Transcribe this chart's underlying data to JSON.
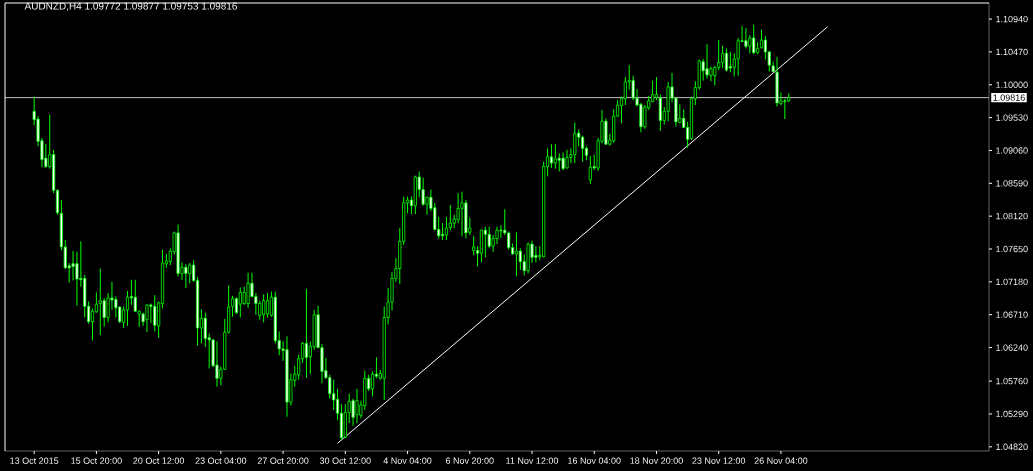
{
  "chart_data": {
    "type": "candlestick",
    "title": "AUDNZD,H4 1.09772 1.09877 1.09753 1.09816",
    "categories": [
      "13 Oct 2015",
      null,
      null,
      null,
      null,
      null,
      null,
      null,
      null,
      null,
      null,
      null,
      null,
      null,
      null,
      null,
      "15 Oct 20:00",
      null,
      null,
      null,
      null,
      null,
      null,
      null,
      null,
      null,
      null,
      null,
      null,
      null,
      null,
      null,
      "20 Oct 12:00",
      null,
      null,
      null,
      null,
      null,
      null,
      null,
      null,
      null,
      null,
      null,
      null,
      null,
      null,
      null,
      "23 Oct 04:00",
      null,
      null,
      null,
      null,
      null,
      null,
      null,
      null,
      null,
      null,
      null,
      null,
      null,
      null,
      null,
      "27 Oct 20:00",
      null,
      null,
      null,
      null,
      null,
      null,
      null,
      null,
      null,
      null,
      null,
      null,
      null,
      null,
      null,
      "30 Oct 12:00",
      null,
      null,
      null,
      null,
      null,
      null,
      null,
      null,
      null,
      null,
      null,
      null,
      null,
      null,
      null,
      "4 Nov 04:00",
      null,
      null,
      null,
      null,
      null,
      null,
      null,
      null,
      null,
      null,
      null,
      null,
      null,
      null,
      null,
      "6 Nov 20:00",
      null,
      null,
      null,
      null,
      null,
      null,
      null,
      null,
      null,
      null,
      null,
      null,
      null,
      null,
      null,
      "11 Nov 12:00",
      null,
      null,
      null,
      null,
      null,
      null,
      null,
      null,
      null,
      null,
      null,
      null,
      null,
      null,
      null,
      "16 Nov 04:00",
      null,
      null,
      null,
      null,
      null,
      null,
      null,
      null,
      null,
      null,
      null,
      null,
      null,
      null,
      null,
      "18 Nov 20:00",
      null,
      null,
      null,
      null,
      null,
      null,
      null,
      null,
      null,
      null,
      null,
      null,
      null,
      null,
      null,
      "23 Nov 12:00",
      null,
      null,
      null,
      null,
      null,
      null,
      null,
      null,
      null,
      null,
      null,
      null,
      null,
      null,
      null,
      "26 Nov 04:00",
      null,
      null,
      null,
      null,
      null,
      null,
      null,
      null,
      null,
      null,
      null,
      null,
      null,
      null,
      null,
      null,
      null,
      null,
      null,
      null,
      null,
      null,
      null,
      null,
      null,
      null,
      null,
      null,
      null,
      null,
      null,
      null,
      null,
      null,
      null,
      null,
      null,
      null,
      null,
      null,
      null,
      null,
      null,
      null,
      null,
      null,
      null,
      null,
      null,
      null,
      null,
      null,
      null
    ],
    "series": [
      {
        "type": "candlestick",
        "color": "#00ff00",
        "ohlc": [
          [
            1.0962,
            1.0983,
            1.0942,
            1.095
          ],
          [
            1.0951,
            1.0955,
            1.0912,
            1.0919
          ],
          [
            1.092,
            1.0924,
            1.0882,
            1.0893
          ],
          [
            1.0895,
            1.0915,
            1.0881,
            1.0883
          ],
          [
            1.0883,
            1.0957,
            1.088,
            1.09
          ],
          [
            1.09,
            1.0907,
            1.0845,
            1.0849
          ],
          [
            1.0849,
            1.085,
            1.0814,
            1.0817
          ],
          [
            1.0816,
            1.0835,
            1.0763,
            1.0768
          ],
          [
            1.0768,
            1.0778,
            1.0737,
            1.0738
          ],
          [
            1.0741,
            1.0745,
            1.0717,
            1.0738
          ],
          [
            1.0744,
            1.0762,
            1.072,
            1.074
          ],
          [
            1.0744,
            1.0761,
            1.0684,
            1.0722
          ],
          [
            1.0723,
            1.0776,
            1.0711,
            1.0721
          ],
          [
            1.0723,
            1.0728,
            1.0667,
            1.0683
          ],
          [
            1.0683,
            1.069,
            1.0658,
            1.0661
          ],
          [
            1.0661,
            1.068,
            1.0634,
            1.0676
          ],
          [
            1.0675,
            1.0703,
            1.0674,
            1.0686
          ],
          [
            1.0687,
            1.0737,
            1.0642,
            1.0691
          ],
          [
            1.0691,
            1.0695,
            1.0654,
            1.0667
          ],
          [
            1.0667,
            1.0702,
            1.066,
            1.0695
          ],
          [
            1.0695,
            1.0718,
            1.0678,
            1.0692
          ],
          [
            1.0693,
            1.0697,
            1.0667,
            1.0681
          ],
          [
            1.0682,
            1.0683,
            1.0659,
            1.0661
          ],
          [
            1.066,
            1.0683,
            1.0652,
            1.0678
          ],
          [
            1.0678,
            1.0705,
            1.0655,
            1.0696
          ],
          [
            1.0697,
            1.0721,
            1.0685,
            1.0695
          ],
          [
            1.0696,
            1.0721,
            1.0675,
            1.0676
          ],
          [
            1.0672,
            1.0677,
            1.0654,
            1.0676
          ],
          [
            1.0672,
            1.0674,
            1.0655,
            1.0661
          ],
          [
            1.0664,
            1.0686,
            1.0646,
            1.0685
          ],
          [
            1.0685,
            1.0687,
            1.0659,
            1.0683
          ],
          [
            1.0683,
            1.0699,
            1.0647,
            1.0656
          ],
          [
            1.0655,
            1.069,
            1.0638,
            1.0688
          ],
          [
            1.0687,
            1.0764,
            1.068,
            1.0745
          ],
          [
            1.0744,
            1.0758,
            1.0738,
            1.0748
          ],
          [
            1.0747,
            1.0766,
            1.0742,
            1.0762
          ],
          [
            1.0761,
            1.079,
            1.0757,
            1.0788
          ],
          [
            1.0788,
            1.08,
            1.0726,
            1.073
          ],
          [
            1.073,
            1.0746,
            1.0721,
            1.0739
          ],
          [
            1.0739,
            1.0743,
            1.0709,
            1.073
          ],
          [
            1.073,
            1.0745,
            1.0716,
            1.0742
          ],
          [
            1.0742,
            1.0749,
            1.0718,
            1.072
          ],
          [
            1.072,
            1.0725,
            1.0627,
            1.0652
          ],
          [
            1.0652,
            1.0679,
            1.063,
            1.0666
          ],
          [
            1.0666,
            1.0674,
            1.0625,
            1.0637
          ],
          [
            1.0638,
            1.0644,
            1.0594,
            1.0635
          ],
          [
            1.0635,
            1.0636,
            1.0596,
            1.0598
          ],
          [
            1.0599,
            1.0633,
            1.0568,
            1.058
          ],
          [
            1.058,
            1.0597,
            1.057,
            1.0593
          ],
          [
            1.0593,
            1.0665,
            1.0592,
            1.0646
          ],
          [
            1.0646,
            1.0713,
            1.0644,
            1.0682
          ],
          [
            1.0683,
            1.0698,
            1.0668,
            1.0694
          ],
          [
            1.0694,
            1.0696,
            1.0672,
            1.0674
          ],
          [
            1.0686,
            1.071,
            1.0667,
            1.0703
          ],
          [
            1.0687,
            1.0711,
            1.0685,
            1.0703
          ],
          [
            1.0687,
            1.0731,
            1.0681,
            1.0716
          ],
          [
            1.0716,
            1.0731,
            1.0696,
            1.0697
          ],
          [
            1.0697,
            1.0702,
            1.0671,
            1.0687
          ],
          [
            1.067,
            1.0691,
            1.0664,
            1.0687
          ],
          [
            1.0671,
            1.07,
            1.066,
            1.0691
          ],
          [
            1.0672,
            1.0702,
            1.0667,
            1.0691
          ],
          [
            1.067,
            1.0704,
            1.0668,
            1.0696
          ],
          [
            1.0696,
            1.0704,
            1.063,
            1.0634
          ],
          [
            1.0634,
            1.0647,
            1.0613,
            1.0622
          ],
          [
            1.0622,
            1.0633,
            1.0605,
            1.062
          ],
          [
            1.0621,
            1.064,
            1.0525,
            1.0546
          ],
          [
            1.0546,
            1.0587,
            1.0541,
            1.0578
          ],
          [
            1.0577,
            1.0598,
            1.0568,
            1.0586
          ],
          [
            1.0585,
            1.0614,
            1.0578,
            1.0608
          ],
          [
            1.0608,
            1.0632,
            1.0602,
            1.063
          ],
          [
            1.063,
            1.0708,
            1.0581,
            1.061
          ],
          [
            1.0611,
            1.0633,
            1.0586,
            1.0626
          ],
          [
            1.0625,
            1.0678,
            1.0621,
            1.0671
          ],
          [
            1.0671,
            1.0684,
            1.0623,
            1.0624
          ],
          [
            1.0624,
            1.0629,
            1.0573,
            1.059
          ],
          [
            1.0591,
            1.0609,
            1.0579,
            1.0581
          ],
          [
            1.0581,
            1.0585,
            1.0551,
            1.0558
          ],
          [
            1.0558,
            1.0578,
            1.0535,
            1.0549
          ],
          [
            1.055,
            1.0565,
            1.052,
            1.053
          ],
          [
            1.053,
            1.0543,
            1.0492,
            1.0495
          ],
          [
            1.0496,
            1.0543,
            1.0494,
            1.0531
          ],
          [
            1.0531,
            1.0558,
            1.0516,
            1.0547
          ],
          [
            1.0548,
            1.0551,
            1.0512,
            1.0524
          ],
          [
            1.0528,
            1.0565,
            1.0516,
            1.0548
          ],
          [
            1.0527,
            1.0548,
            1.0523,
            1.0542
          ],
          [
            1.0541,
            1.0591,
            1.0535,
            1.058
          ],
          [
            1.058,
            1.0585,
            1.0562,
            1.0565
          ],
          [
            1.0565,
            1.059,
            1.0554,
            1.0586
          ],
          [
            1.0586,
            1.061,
            1.058,
            1.0583
          ],
          [
            1.058,
            1.0592,
            1.0578,
            1.0587
          ],
          [
            1.058,
            1.0683,
            1.0549,
            1.0667
          ],
          [
            1.0667,
            1.0709,
            1.0657,
            1.0689
          ],
          [
            1.0689,
            1.0732,
            1.0677,
            1.0723
          ],
          [
            1.0723,
            1.0752,
            1.0718,
            1.0737
          ],
          [
            1.0737,
            1.0795,
            1.0715,
            1.0776
          ],
          [
            1.0776,
            1.084,
            1.0771,
            1.0831
          ],
          [
            1.0831,
            1.084,
            1.0816,
            1.0835
          ],
          [
            1.0835,
            1.084,
            1.0815,
            1.0827
          ],
          [
            1.0827,
            1.087,
            1.0815,
            1.0868
          ],
          [
            1.0868,
            1.0876,
            1.0839,
            1.085
          ],
          [
            1.085,
            1.0867,
            1.0827,
            1.0829
          ],
          [
            1.0829,
            1.084,
            1.0814,
            1.0839
          ],
          [
            1.0839,
            1.085,
            1.0819,
            1.0823
          ],
          [
            1.0824,
            1.0831,
            1.0792,
            1.0793
          ],
          [
            1.0793,
            1.0811,
            1.078,
            1.0784
          ],
          [
            1.0786,
            1.0802,
            1.0778,
            1.0784
          ],
          [
            1.0785,
            1.0811,
            1.0778,
            1.0795
          ],
          [
            1.0796,
            1.0828,
            1.0792,
            1.0802
          ],
          [
            1.0802,
            1.0814,
            1.0795,
            1.0808
          ],
          [
            1.0807,
            1.0845,
            1.0802,
            1.0823
          ],
          [
            1.0823,
            1.0847,
            1.0783,
            1.0831
          ],
          [
            1.0831,
            1.0835,
            1.078,
            1.0788
          ],
          [
            1.0789,
            1.081,
            1.0785,
            1.0795
          ],
          [
            1.0763,
            1.0784,
            1.0756,
            1.0768
          ],
          [
            1.0763,
            1.0769,
            1.074,
            1.0759
          ],
          [
            1.0759,
            1.0793,
            1.0746,
            1.0792
          ],
          [
            1.0792,
            1.0797,
            1.0753,
            1.0786
          ],
          [
            1.0786,
            1.0797,
            1.0766,
            1.0769
          ],
          [
            1.0769,
            1.0785,
            1.0761,
            1.078
          ],
          [
            1.078,
            1.0797,
            1.0772,
            1.0792
          ],
          [
            1.0792,
            1.0799,
            1.0781,
            1.0791
          ],
          [
            1.0792,
            1.0822,
            1.0785,
            1.0788
          ],
          [
            1.0788,
            1.079,
            1.0764,
            1.0767
          ],
          [
            1.0767,
            1.0773,
            1.0757,
            1.0758
          ],
          [
            1.0758,
            1.0789,
            1.0726,
            1.0762
          ],
          [
            1.0762,
            1.0766,
            1.0735,
            1.0747
          ],
          [
            1.0747,
            1.0757,
            1.0727,
            1.0734
          ],
          [
            1.0734,
            1.0774,
            1.073,
            1.0772
          ],
          [
            1.0772,
            1.0777,
            1.0745,
            1.0753
          ],
          [
            1.0756,
            1.0769,
            1.0746,
            1.0753
          ],
          [
            1.0754,
            1.0769,
            1.0749,
            1.0756
          ],
          [
            1.0754,
            1.089,
            1.0753,
            1.0883
          ],
          [
            1.0883,
            1.0909,
            1.0869,
            1.0897
          ],
          [
            1.0897,
            1.0915,
            1.0881,
            1.0888
          ],
          [
            1.0888,
            1.0915,
            1.088,
            1.0894
          ],
          [
            1.0895,
            1.0902,
            1.0876,
            1.0892
          ],
          [
            1.0895,
            1.0903,
            1.0878,
            1.088
          ],
          [
            1.0881,
            1.0907,
            1.088,
            1.0896
          ],
          [
            1.0896,
            1.0909,
            1.0888,
            1.09
          ],
          [
            1.09,
            1.0946,
            1.0888,
            1.093
          ],
          [
            1.0931,
            1.0936,
            1.0912,
            1.0925
          ],
          [
            1.0925,
            1.0927,
            1.089,
            1.0909
          ],
          [
            1.0909,
            1.0912,
            1.0892,
            1.0899
          ],
          [
            1.0864,
            1.0898,
            1.0858,
            1.0882
          ],
          [
            1.0883,
            1.09,
            1.0878,
            1.0881
          ],
          [
            1.0881,
            1.0924,
            1.0877,
            1.092
          ],
          [
            1.0919,
            1.0964,
            1.0916,
            1.0948
          ],
          [
            1.0948,
            1.0952,
            1.0914,
            1.0915
          ],
          [
            1.0915,
            1.093,
            1.0913,
            1.0921
          ],
          [
            1.092,
            1.0965,
            1.0917,
            1.0955
          ],
          [
            1.0955,
            1.0978,
            1.0954,
            1.0971
          ],
          [
            1.097,
            1.0983,
            1.0945,
            1.0981
          ],
          [
            1.098,
            1.1011,
            1.0971,
            1.1004
          ],
          [
            1.1004,
            1.1028,
            1.0993,
            1.1006
          ],
          [
            1.1006,
            1.1013,
            1.0978,
            1.0981
          ],
          [
            1.0981,
            1.0994,
            1.0969,
            1.0971
          ],
          [
            1.0972,
            1.0974,
            1.0932,
            1.094
          ],
          [
            1.094,
            1.0971,
            1.0937,
            1.0968
          ],
          [
            1.0967,
            1.0984,
            1.0964,
            1.0977
          ],
          [
            1.0976,
            1.1006,
            1.0975,
            1.0986
          ],
          [
            1.0982,
            1.1011,
            1.0978,
            1.0986
          ],
          [
            1.0981,
            1.0986,
            1.0934,
            1.0949
          ],
          [
            1.0949,
            1.0968,
            1.0943,
            1.0962
          ],
          [
            1.0962,
            1.1004,
            1.0948,
            1.0997
          ],
          [
            1.0997,
            1.1017,
            1.0975,
            1.0981
          ],
          [
            1.0981,
            1.0982,
            1.094,
            1.0947
          ],
          [
            1.0946,
            1.0972,
            1.0945,
            1.0952
          ],
          [
            1.0952,
            1.0965,
            1.0938,
            1.0939
          ],
          [
            1.0939,
            1.0947,
            1.091,
            1.0922
          ],
          [
            1.0923,
            1.0983,
            1.0921,
            1.098
          ],
          [
            1.098,
            1.1005,
            1.0971,
            1.0996
          ],
          [
            1.0996,
            1.1036,
            1.0993,
            1.1034
          ],
          [
            1.1033,
            1.1037,
            1.1006,
            1.102
          ],
          [
            1.1023,
            1.1058,
            1.1009,
            1.1014
          ],
          [
            1.1013,
            1.1026,
            1.1005,
            1.1023
          ],
          [
            1.1013,
            1.1027,
            1.0999,
            1.1025
          ],
          [
            1.1025,
            1.1064,
            1.1021,
            1.1032
          ],
          [
            1.1032,
            1.1056,
            1.1024,
            1.1045
          ],
          [
            1.1045,
            1.1052,
            1.1019,
            1.1021
          ],
          [
            1.1026,
            1.1047,
            1.1018,
            1.1024
          ],
          [
            1.1025,
            1.1045,
            1.1012,
            1.1037
          ],
          [
            1.1037,
            1.1067,
            1.1013,
            1.1063
          ],
          [
            1.1063,
            1.1084,
            1.1061,
            1.1062
          ],
          [
            1.1063,
            1.1081,
            1.1052,
            1.1055
          ],
          [
            1.1055,
            1.1071,
            1.1045,
            1.1067
          ],
          [
            1.1067,
            1.1086,
            1.1044,
            1.1046
          ],
          [
            1.1046,
            1.1061,
            1.1044,
            1.1052
          ],
          [
            1.1053,
            1.1079,
            1.1052,
            1.1064
          ],
          [
            1.1064,
            1.107,
            1.1036,
            1.1047
          ],
          [
            1.1047,
            1.1048,
            1.1019,
            1.1028
          ],
          [
            1.1027,
            1.1033,
            1.1018,
            1.1019
          ],
          [
            1.1018,
            1.104,
            1.0969,
            1.0974
          ],
          [
            1.0973,
            1.0989,
            1.0971,
            1.0977
          ],
          [
            1.0977,
            1.098,
            1.0951,
            1.0976
          ],
          [
            1.09772,
            1.09877,
            1.09753,
            1.09816
          ],
          null,
          null,
          null,
          null,
          null,
          null,
          null,
          null,
          null,
          null,
          null,
          null,
          null,
          null,
          null,
          null,
          null,
          null,
          null,
          null,
          null,
          null,
          null,
          null,
          null,
          null,
          null,
          null,
          null,
          null,
          null,
          null,
          null,
          null,
          null,
          null,
          null,
          null,
          null,
          null,
          null,
          null,
          null,
          null,
          null,
          null,
          null,
          null,
          null,
          null,
          null
        ]
      },
      {
        "type": "line",
        "color": "#ffffff",
        "values": [
          null,
          null,
          null,
          null,
          null,
          null,
          null,
          null,
          null,
          null,
          null,
          null,
          null,
          null,
          null,
          null,
          null,
          null,
          null,
          null,
          null,
          null,
          null,
          null,
          null,
          null,
          null,
          null,
          null,
          null,
          null,
          null,
          null,
          null,
          null,
          null,
          null,
          null,
          null,
          null,
          null,
          null,
          null,
          null,
          null,
          null,
          null,
          null,
          null,
          null,
          null,
          null,
          null,
          null,
          null,
          null,
          null,
          null,
          null,
          null,
          null,
          null,
          null,
          null,
          null,
          null,
          null,
          null,
          null,
          null,
          null,
          null,
          null,
          null,
          null,
          null,
          null,
          null,
          1.0487,
          null,
          null,
          null,
          null,
          null,
          null,
          null,
          null,
          null,
          null,
          null,
          null,
          null,
          null,
          null,
          null,
          null,
          null,
          null,
          null,
          null,
          null,
          null,
          null,
          null,
          null,
          null,
          null,
          null,
          null,
          null,
          null,
          null,
          null,
          null,
          null,
          null,
          null,
          null,
          null,
          null,
          null,
          null,
          null,
          null,
          null,
          null,
          null,
          null,
          null,
          null,
          null,
          null,
          null,
          null,
          null,
          null,
          null,
          null,
          null,
          null,
          null,
          null,
          null,
          null,
          null,
          null,
          null,
          null,
          null,
          null,
          null,
          null,
          null,
          null,
          null,
          null,
          null,
          null,
          null,
          null,
          null,
          null,
          null,
          null,
          null,
          null,
          null,
          null,
          null,
          null,
          null,
          null,
          null,
          null,
          null,
          null,
          null,
          null,
          null,
          null,
          null,
          null,
          null,
          null,
          null,
          null,
          null,
          null,
          null,
          null,
          null,
          null,
          null,
          null,
          null,
          null,
          null,
          null,
          null,
          null,
          null,
          null,
          null,
          null,
          1.1083,
          null,
          null,
          null,
          null,
          null,
          null,
          null,
          null,
          null,
          null,
          null,
          null,
          null,
          null,
          null,
          null,
          null,
          null,
          null,
          null,
          null,
          null,
          null,
          null,
          null,
          null,
          null,
          null,
          null,
          null,
          null,
          null,
          null,
          null,
          null,
          null,
          null,
          null,
          null,
          null,
          null
        ]
      }
    ],
    "ylim": [
      1.0476,
      1.1117
    ],
    "yticks": [
      {
        "value": 1.0482,
        "label": "1.04820"
      },
      {
        "value": 1.0529,
        "label": "1.05290"
      },
      {
        "value": 1.0576,
        "label": "1.05760"
      },
      {
        "value": 1.0624,
        "label": "1.06240"
      },
      {
        "value": 1.0671,
        "label": "1.06710"
      },
      {
        "value": 1.0718,
        "label": "1.07180"
      },
      {
        "value": 1.0765,
        "label": "1.07650"
      },
      {
        "value": 1.0812,
        "label": "1.08120"
      },
      {
        "value": 1.0859,
        "label": "1.08590"
      },
      {
        "value": 1.0906,
        "label": "1.09060"
      },
      {
        "value": 1.0953,
        "label": "1.09530"
      },
      {
        "value": 1.1,
        "label": "1.10000"
      },
      {
        "value": 1.1047,
        "label": "1.10470"
      },
      {
        "value": 1.1094,
        "label": "1.10940"
      }
    ],
    "ref_lines": [
      {
        "axis": "y",
        "value": 1.09816,
        "label": "1.09816",
        "color": "#c0c0c0"
      }
    ]
  }
}
